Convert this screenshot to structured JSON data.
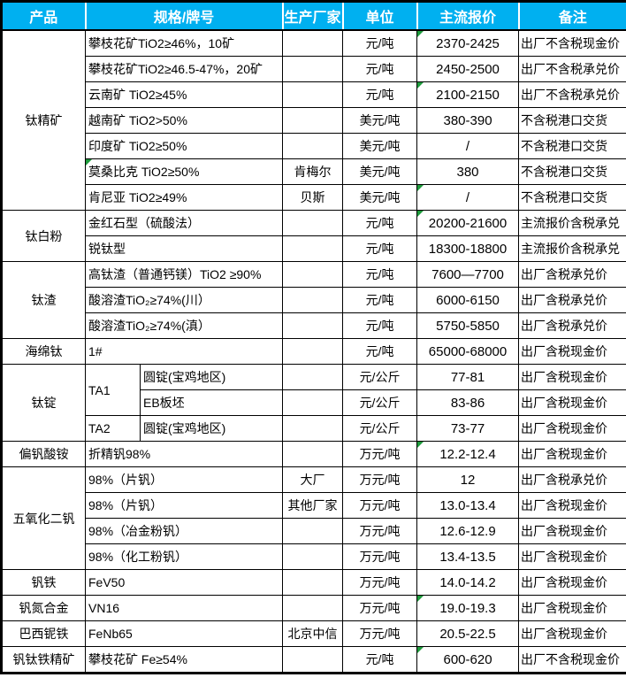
{
  "colors": {
    "header_bg": "#00b0f0",
    "header_text": "#ffffff",
    "grid_border": "#000000",
    "comment_flag_green": "#1e9b3c"
  },
  "header": {
    "columns": [
      "产品",
      "规格/牌号",
      "生产厂家",
      "单位",
      "主流报价",
      "备注"
    ]
  },
  "table": {
    "groups": [
      {
        "product": "钛精矿",
        "rows": [
          {
            "spec": "攀枝花矿TiO2≥46%，10矿",
            "producer": "",
            "unit": "元/吨",
            "price": "2370-2425",
            "note": "出厂不含税现金价",
            "price_flag": true
          },
          {
            "spec": "攀枝花矿TiO2≥46.5-47%，20矿",
            "producer": "",
            "unit": "元/吨",
            "price": "2450-2500",
            "note": "出厂不含税承兑价"
          },
          {
            "spec": "云南矿 TiO2≥45%",
            "producer": "",
            "unit": "元/吨",
            "price": "2100-2150",
            "note": "出厂不含税承兑价",
            "price_flag": true
          },
          {
            "spec": "越南矿 TiO2>50%",
            "producer": "",
            "unit": "美元/吨",
            "price": "380-390",
            "note": "不含税港口交货"
          },
          {
            "spec": "印度矿 TiO2≥50%",
            "producer": "",
            "unit": "美元/吨",
            "price": "/",
            "note": "不含税港口交货"
          },
          {
            "spec": "莫桑比克 TiO2≥50%",
            "producer": "肯梅尔",
            "unit": "美元/吨",
            "price": "380",
            "note": "不含税港口交货",
            "spec_flag": true
          },
          {
            "spec": "肯尼亚 TiO2≥49%",
            "producer": "贝斯",
            "unit": "美元/吨",
            "price": "/",
            "note": "不含税港口交货",
            "price_flag": true
          }
        ]
      },
      {
        "product": "钛白粉",
        "rows": [
          {
            "spec": "金红石型（硫酸法）",
            "producer": "",
            "unit": "元/吨",
            "price": "20200-21600",
            "note": "主流报价含税承兑",
            "price_flag": true
          },
          {
            "spec": "锐钛型",
            "producer": "",
            "unit": "元/吨",
            "price": "18300-18800",
            "note": "主流报价含税承兑"
          }
        ]
      },
      {
        "product": "钛渣",
        "rows": [
          {
            "spec": "高钛渣（普通钙镁）TiO2 ≥90%",
            "producer": "",
            "unit": "元/吨",
            "price": "7600—7700",
            "note": "出厂含税承兑价"
          },
          {
            "spec": "酸溶渣TiO₂≥74%(川）",
            "producer": "",
            "unit": "元/吨",
            "price": "6000-6150",
            "note": "出厂含税承兑价"
          },
          {
            "spec": "酸溶渣TiO₂≥74%(滇）",
            "producer": "",
            "unit": "元/吨",
            "price": "5750-5850",
            "note": "出厂含税承兑价"
          }
        ]
      },
      {
        "product": "海绵钛",
        "rows": [
          {
            "spec": "1#",
            "producer": "",
            "unit": "元/吨",
            "price": "65000-68000",
            "note": "出厂含税现金价"
          }
        ]
      },
      {
        "product": "钛锭",
        "rows": [
          {
            "spec": "TA1",
            "spec_rowspan": 2,
            "spec2": "圆锭(宝鸡地区)",
            "producer": "",
            "unit": "元/公斤",
            "price": "77-81",
            "note": "出厂含税现金价"
          },
          {
            "spec2": "EB板坯",
            "producer": "",
            "unit": "元/公斤",
            "price": "83-86",
            "note": "出厂含税现金价"
          },
          {
            "spec": "TA2",
            "spec2": "圆锭(宝鸡地区)",
            "producer": "",
            "unit": "元/公斤",
            "price": "73-77",
            "note": "出厂含税现金价"
          }
        ]
      },
      {
        "product": "偏钒酸铵",
        "rows": [
          {
            "spec": "折精钒98%",
            "producer": "",
            "unit": "万元/吨",
            "price": "12.2-12.4",
            "note": "出厂含税现金价",
            "price_flag": true
          }
        ]
      },
      {
        "product": "五氧化二钒",
        "rows": [
          {
            "spec": "98%（片钒）",
            "producer": "大厂",
            "unit": "万元/吨",
            "price": "12",
            "note": "出厂含税承兑价"
          },
          {
            "spec": "98%（片钒）",
            "producer": "其他厂家",
            "unit": "万元/吨",
            "price": "13.0-13.4",
            "note": "出厂含税现金价"
          },
          {
            "spec": "98%（冶金粉钒）",
            "producer": "",
            "unit": "万元/吨",
            "price": "12.6-12.9",
            "note": "出厂含税现金价"
          },
          {
            "spec": "98%（化工粉钒）",
            "producer": "",
            "unit": "万元/吨",
            "price": "13.4-13.5",
            "note": "出厂含税现金价"
          }
        ]
      },
      {
        "product": "钒铁",
        "rows": [
          {
            "spec": "FeV50",
            "producer": "",
            "unit": "万元/吨",
            "price": "14.0-14.2",
            "note": "出厂含税现金价"
          }
        ]
      },
      {
        "product": "钒氮合金",
        "rows": [
          {
            "spec": "VN16",
            "producer": "",
            "unit": "万元/吨",
            "price": "19.0-19.3",
            "note": "出厂含税现金价",
            "price_flag": true
          }
        ]
      },
      {
        "product": "巴西铌铁",
        "rows": [
          {
            "spec": "FeNb65",
            "producer": "北京中信",
            "unit": "万元/吨",
            "price": "20.5-22.5",
            "note": "出厂含税现金价"
          }
        ]
      },
      {
        "product": "钒钛铁精矿",
        "rows": [
          {
            "spec": "攀枝花矿 Fe≥54%",
            "producer": "",
            "unit": "元/吨",
            "price": "600-620",
            "note": "出厂不含税现金价",
            "price_flag": true
          }
        ]
      }
    ]
  }
}
